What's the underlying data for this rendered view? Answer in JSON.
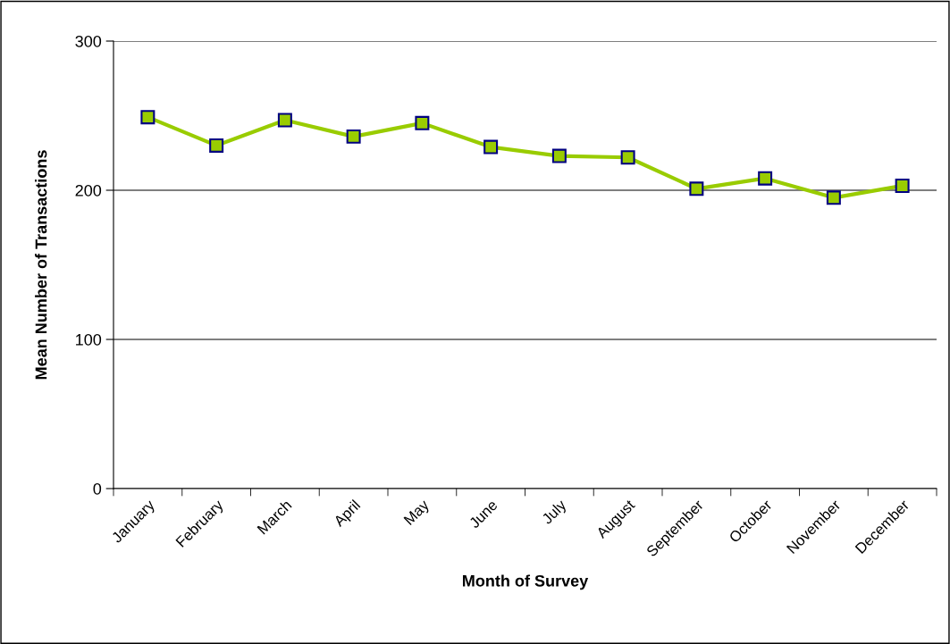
{
  "chart_data": {
    "type": "line",
    "xlabel": "Month of Survey",
    "ylabel": "Mean Number of Transactions",
    "categories": [
      "January",
      "February",
      "March",
      "April",
      "May",
      "June",
      "July",
      "August",
      "September",
      "October",
      "November",
      "December"
    ],
    "series": [
      {
        "color": "#99cc00",
        "values": [
          249,
          230,
          247,
          236,
          245,
          229,
          223,
          222,
          201,
          208,
          195,
          203
        ]
      }
    ],
    "ylim": [
      0,
      300
    ],
    "yticks": [
      0,
      100,
      200,
      300
    ],
    "grid": "y",
    "marker": "square",
    "line_style": "solid",
    "legend": false
  }
}
